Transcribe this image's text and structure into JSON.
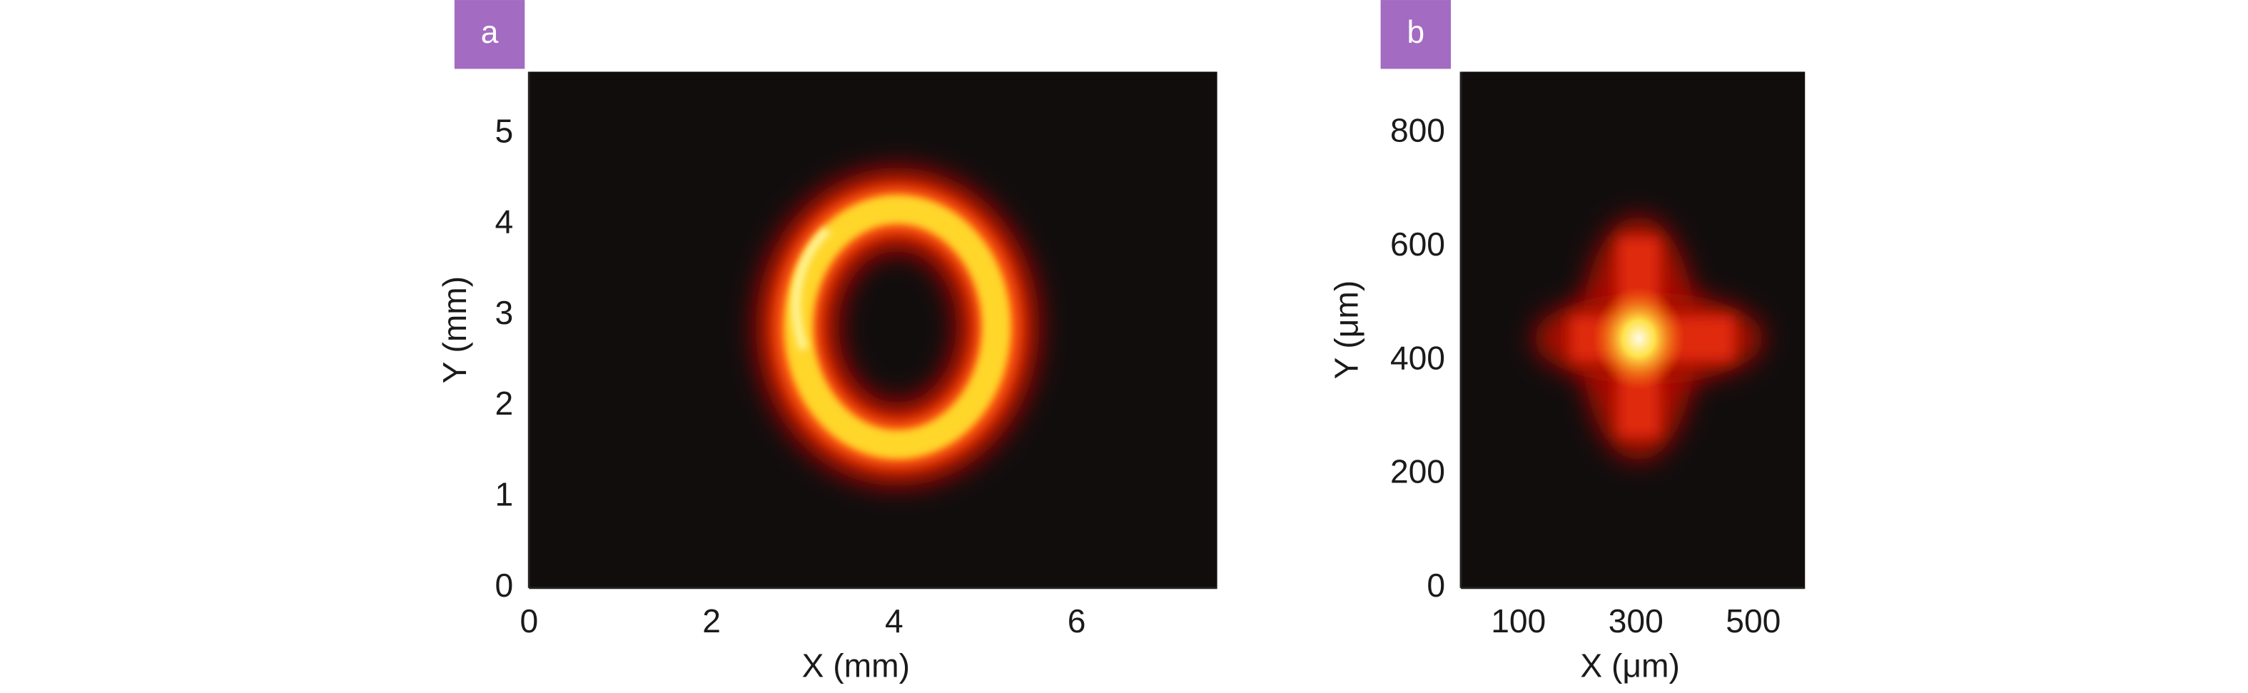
{
  "chart_data": [
    {
      "type": "image",
      "panel_label": "a",
      "x_label": "X (mm)",
      "y_label": "Y (mm)",
      "xlim": [
        0,
        7.54
      ],
      "ylim": [
        0,
        5.68
      ],
      "xticks": [
        0,
        2,
        4,
        6
      ],
      "yticks": [
        0,
        1,
        2,
        3,
        4,
        5
      ]
    },
    {
      "type": "image",
      "panel_label": "b",
      "x_label": "X (μm)",
      "y_label": "Y (μm)",
      "xlim": [
        2,
        588
      ],
      "ylim": [
        0,
        908
      ],
      "xticks": [
        100,
        300,
        500
      ],
      "yticks": [
        0,
        200,
        400,
        600,
        800
      ]
    }
  ]
}
